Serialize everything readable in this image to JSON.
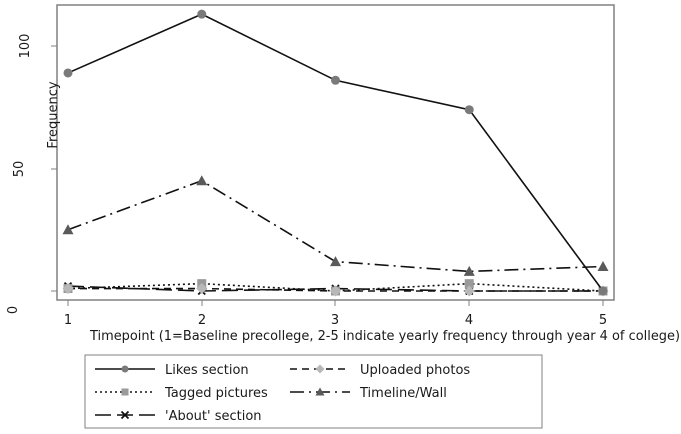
{
  "chart_data": {
    "type": "line",
    "title": "",
    "xlabel": "Timepoint (1=Baseline precollege, 2-5 indicate yearly frequency through year 4 of college)",
    "ylabel": "Frequency",
    "x": [
      1,
      2,
      3,
      4,
      5
    ],
    "x_tick_labels": [
      "1",
      "2",
      "3",
      "4",
      "5"
    ],
    "y_ticks": [
      0,
      50,
      100
    ],
    "y_tick_labels": [
      "0",
      "50",
      "100"
    ],
    "ylim": [
      -3,
      117
    ],
    "xlim": [
      0.93,
      5.07
    ],
    "grid": false,
    "legend_position": "bottom",
    "series": [
      {
        "name": "Likes section",
        "values": [
          89,
          113,
          86,
          74,
          0
        ],
        "line": "solid",
        "marker": "circle",
        "marker_color": "#7a7a7a"
      },
      {
        "name": "Uploaded photos",
        "values": [
          1,
          1,
          0,
          0,
          0
        ],
        "line": "dashed",
        "marker": "diamond",
        "marker_color": "#b8b8b8"
      },
      {
        "name": "Tagged pictures",
        "values": [
          1,
          3,
          0,
          3,
          0
        ],
        "line": "dotted",
        "marker": "square",
        "marker_color": "#9a9a9a"
      },
      {
        "name": "Timeline/Wall",
        "values": [
          25,
          45,
          12,
          8,
          10
        ],
        "line": "longdash-dot",
        "marker": "triangle",
        "marker_color": "#5a5a5a"
      },
      {
        "name": "'About' section",
        "values": [
          2,
          0,
          1,
          0,
          0
        ],
        "line": "longdash",
        "marker": "x",
        "marker_color": "#111111"
      }
    ]
  },
  "legend": {
    "items": [
      {
        "label": "Likes section"
      },
      {
        "label": "Uploaded photos"
      },
      {
        "label": "Tagged pictures"
      },
      {
        "label": "Timeline/Wall"
      },
      {
        "label": "'About' section"
      }
    ]
  }
}
